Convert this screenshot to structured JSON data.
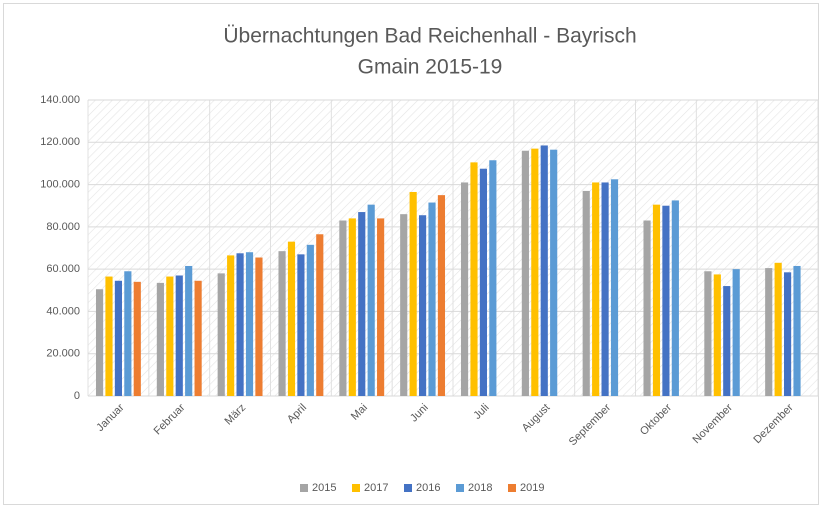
{
  "chart_data": {
    "type": "bar",
    "title": [
      "Übernachtungen Bad Reichenhall - Bayrisch",
      "Gmain 2015-19"
    ],
    "categories": [
      "Januar",
      "Februar",
      "März",
      "April",
      "Mai",
      "Juni",
      "Juli",
      "August",
      "September",
      "Oktober",
      "November",
      "Dezember"
    ],
    "series": [
      {
        "name": "2015",
        "color": "#a5a5a5",
        "values": [
          50500,
          53500,
          58000,
          68500,
          83000,
          86000,
          101000,
          116000,
          97000,
          83000,
          59000,
          60500
        ]
      },
      {
        "name": "2017",
        "color": "#ffc000",
        "values": [
          56500,
          56500,
          66500,
          73000,
          84000,
          96500,
          110500,
          117000,
          101000,
          90500,
          57500,
          63000
        ]
      },
      {
        "name": "2016",
        "color": "#4472c4",
        "values": [
          54500,
          57000,
          67500,
          67000,
          87000,
          85500,
          107500,
          118500,
          101000,
          90000,
          52000,
          58500
        ]
      },
      {
        "name": "2018",
        "color": "#5b9bd5",
        "values": [
          59000,
          61500,
          68000,
          71500,
          90500,
          91500,
          111500,
          116500,
          102500,
          92500,
          60000,
          61500
        ]
      },
      {
        "name": "2019",
        "color": "#ed7d31",
        "values": [
          54000,
          54500,
          65500,
          76500,
          84000,
          95000,
          null,
          null,
          null,
          null,
          null,
          null
        ]
      }
    ],
    "ylim": [
      0,
      140000
    ],
    "yticks": [
      0,
      {
        "value": 20000,
        "label": "20.000"
      },
      {
        "value": 40000,
        "label": "40.000"
      },
      {
        "value": 60000,
        "label": "60.000"
      },
      {
        "value": 80000,
        "label": "80.000"
      },
      {
        "value": 100000,
        "label": "100.000"
      },
      {
        "value": 120000,
        "label": "120.000"
      },
      {
        "value": 140000,
        "label": "140.000"
      }
    ],
    "grid": true,
    "legend": "bottom"
  }
}
